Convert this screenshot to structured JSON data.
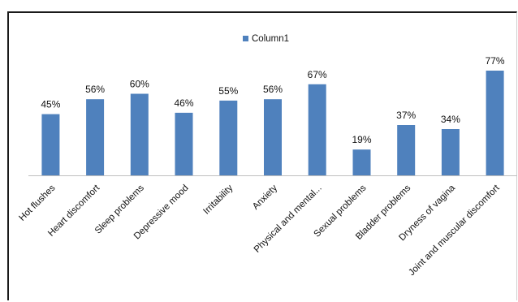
{
  "chart_data": {
    "type": "bar",
    "categories": [
      "Hot flushes",
      "Heart discomfort",
      "Sleep problems",
      "Depressive mood",
      "Irritability",
      "Anxiety",
      "Physical and mental...",
      "Sexual problems",
      "Bladder problems",
      "Dryness of vagina",
      "Joint and muscular discomfort"
    ],
    "series": [
      {
        "name": "Column1",
        "values": [
          45,
          56,
          60,
          46,
          55,
          56,
          67,
          19,
          37,
          34,
          77
        ],
        "labels": [
          "45%",
          "56%",
          "60%",
          "46%",
          "55%",
          "56%",
          "67%",
          "19%",
          "37%",
          "34%",
          "77%"
        ]
      }
    ],
    "ylim": [
      0,
      77
    ],
    "grid": false,
    "legend": "top-center",
    "color": "#4f81bd"
  }
}
